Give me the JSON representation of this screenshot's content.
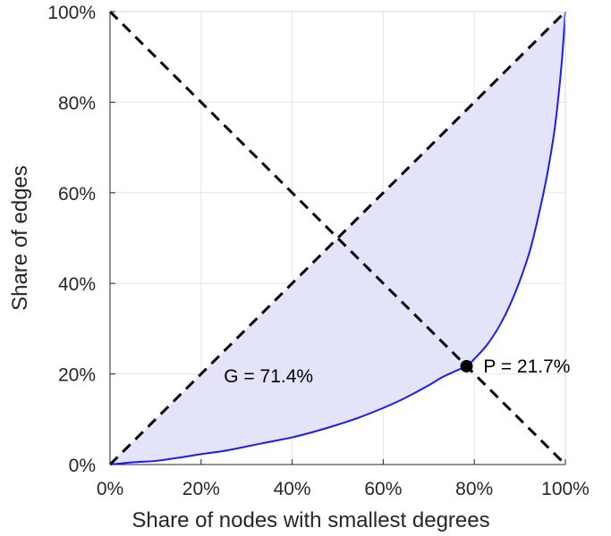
{
  "chart_data": {
    "type": "line",
    "title": "",
    "xlabel": "Share of nodes with smallest degrees",
    "ylabel": "Share of edges",
    "xlim": [
      0,
      100
    ],
    "ylim": [
      0,
      100
    ],
    "grid": true,
    "xticks": [
      0,
      20,
      40,
      60,
      80,
      100
    ],
    "yticks": [
      0,
      20,
      40,
      60,
      80,
      100
    ],
    "xtick_labels": [
      "0%",
      "20%",
      "40%",
      "60%",
      "80%",
      "100%"
    ],
    "ytick_labels": [
      "0%",
      "20%",
      "40%",
      "60%",
      "80%",
      "100%"
    ],
    "series": [
      {
        "type": "lorenz-curve",
        "color": "#1a1aff",
        "fill": "#e3e3fa",
        "x": [
          0,
          5,
          10,
          15,
          20,
          25,
          30,
          35,
          40,
          45,
          50,
          55,
          60,
          65,
          70,
          73,
          76,
          78.3,
          80,
          83,
          86,
          89,
          92,
          94,
          96,
          97.5,
          98.5,
          99.3,
          100
        ],
        "y": [
          0,
          0.5,
          0.8,
          1.5,
          2.3,
          3.0,
          4.0,
          5.0,
          6.0,
          7.3,
          8.8,
          10.5,
          12.5,
          14.8,
          17.5,
          19.3,
          20.7,
          21.7,
          23.3,
          26.7,
          31.5,
          38.0,
          46.5,
          54.5,
          64.0,
          73.0,
          81.5,
          90.0,
          100
        ]
      },
      {
        "type": "reference-diagonal",
        "color": "#000000",
        "style": "dashed",
        "x": [
          0,
          100
        ],
        "y": [
          0,
          100
        ]
      },
      {
        "type": "reference-antidiagonal",
        "color": "#000000",
        "style": "dashed",
        "x": [
          0,
          100
        ],
        "y": [
          100,
          0
        ]
      }
    ],
    "markers": [
      {
        "x": 78.3,
        "y": 21.7,
        "color": "#000000"
      }
    ],
    "annotations": {
      "gini": {
        "text": "G = 71.4%",
        "x": 25,
        "y": 19.5
      },
      "p": {
        "text": "P = 21.7%",
        "x": 82,
        "y": 21.7
      }
    }
  }
}
